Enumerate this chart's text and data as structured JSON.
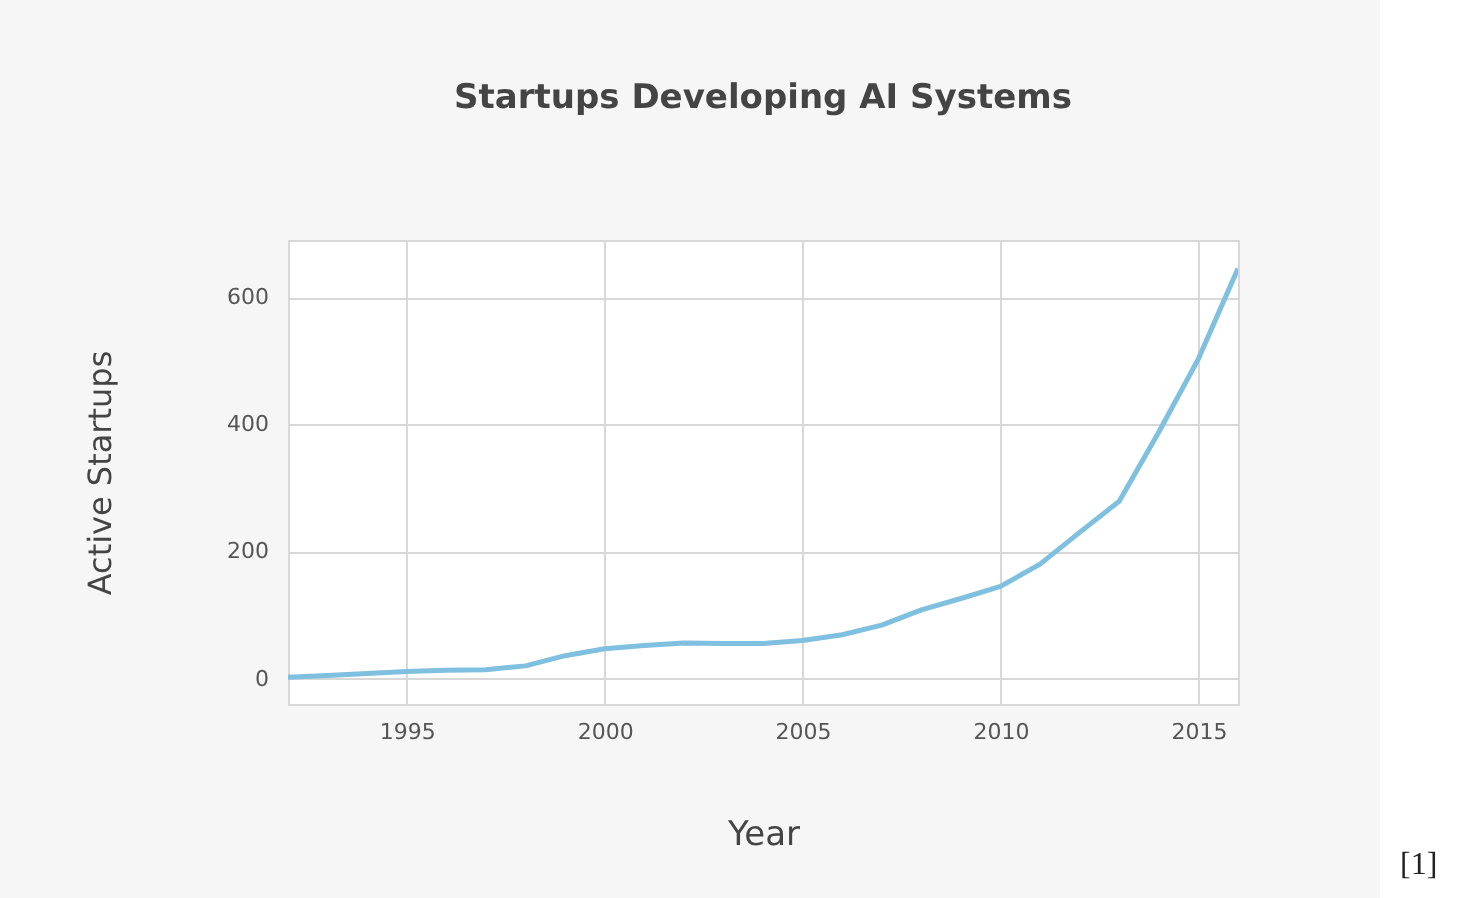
{
  "chart_data": {
    "type": "line",
    "title": "Startups Developing AI Systems",
    "xlabel": "Year",
    "ylabel": "Active Startups",
    "x": [
      1992,
      1993,
      1994,
      1995,
      1996,
      1997,
      1998,
      1999,
      2000,
      2001,
      2002,
      2003,
      2004,
      2005,
      2006,
      2007,
      2008,
      2009,
      2010,
      2011,
      2012,
      2013,
      2014,
      2015,
      2016
    ],
    "series": [
      {
        "color": "#7fbfdf",
        "values": [
          2,
          5,
          8,
          11,
          13,
          14,
          20,
          36,
          47,
          52,
          56,
          55,
          55,
          60,
          69,
          84,
          108,
          126,
          145,
          180,
          230,
          279,
          388,
          503,
          645
        ]
      }
    ],
    "xlim": [
      1992,
      2016
    ],
    "xticks": [
      1995,
      2000,
      2005,
      2010,
      2015
    ],
    "ylim": [
      -40,
      690
    ],
    "yticks": [
      0,
      200,
      400,
      600
    ],
    "grid": true,
    "annotations": [
      "[1]"
    ]
  }
}
